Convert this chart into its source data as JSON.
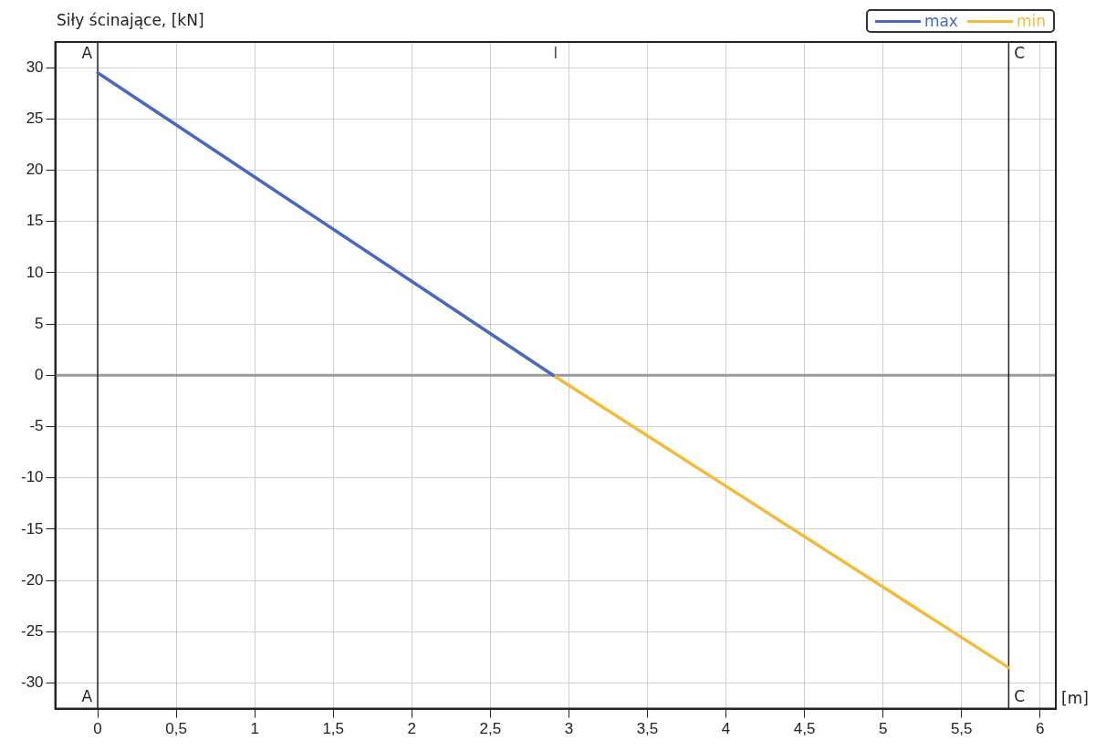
{
  "chart_data": {
    "type": "line",
    "ylabel": "Siły ścinające, [kN]",
    "xlabel": "[m]",
    "series": [
      {
        "name": "max",
        "color": "#4a68bd",
        "x": [
          0,
          2.9
        ],
        "values": [
          29.5,
          0
        ]
      },
      {
        "name": "min",
        "color": "#f2bb3a",
        "x": [
          2.9,
          5.8
        ],
        "values": [
          0,
          -28.5
        ]
      }
    ],
    "xlim": [
      -0.27,
      6.1
    ],
    "ylim": [
      -32.5,
      32.5
    ],
    "xticks": [
      0,
      {
        "value": 0.5,
        "label": "0,5"
      },
      1,
      {
        "value": 1.5,
        "label": "1,5"
      },
      2,
      {
        "value": 2.5,
        "label": "2,5"
      },
      3,
      {
        "value": 3.5,
        "label": "3,5"
      },
      4,
      {
        "value": 4.5,
        "label": "4,5"
      },
      5,
      {
        "value": 5.5,
        "label": "5,5"
      },
      6
    ],
    "yticks": [
      -30,
      -25,
      -20,
      -15,
      -10,
      -5,
      0,
      5,
      10,
      15,
      20,
      25,
      30
    ],
    "ref_lines": [
      {
        "axis": "y",
        "value": 0,
        "color": "#9a9a9a"
      },
      {
        "axis": "x",
        "value": 0,
        "label": "A",
        "color": "#222222"
      },
      {
        "axis": "x",
        "value": 5.8,
        "label": "C",
        "color": "#222222"
      }
    ],
    "annotations": [
      "I"
    ],
    "grid": true,
    "legend": "top right",
    "marker": "none",
    "line_style": "solid"
  }
}
